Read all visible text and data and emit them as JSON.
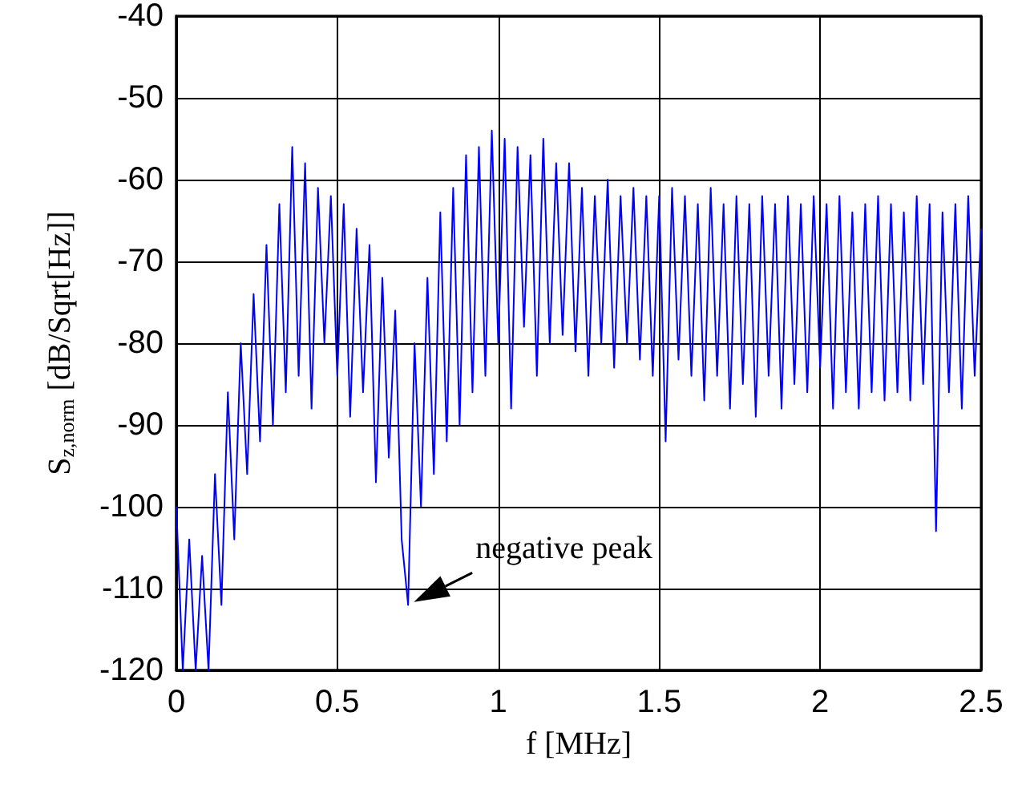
{
  "chart_data": {
    "type": "line",
    "xlabel": "f [MHz]",
    "ylabel": "S$_{z,norm}$ [dB/Sqrt[Hz]]",
    "x": [
      0,
      0.02,
      0.04,
      0.06,
      0.08,
      0.1,
      0.12,
      0.14,
      0.16,
      0.18,
      0.2,
      0.22,
      0.24,
      0.26,
      0.28,
      0.3,
      0.32,
      0.34,
      0.36,
      0.38,
      0.4,
      0.42,
      0.44,
      0.46,
      0.48,
      0.5,
      0.52,
      0.54,
      0.56,
      0.58,
      0.6,
      0.62,
      0.64,
      0.66,
      0.68,
      0.7,
      0.72,
      0.74,
      0.76,
      0.78,
      0.8,
      0.82,
      0.84,
      0.86,
      0.88,
      0.9,
      0.92,
      0.94,
      0.96,
      0.98,
      1,
      1.02,
      1.04,
      1.06,
      1.08,
      1.1,
      1.12,
      1.14,
      1.16,
      1.18,
      1.2,
      1.22,
      1.24,
      1.26,
      1.28,
      1.3,
      1.32,
      1.34,
      1.36,
      1.38,
      1.4,
      1.42,
      1.44,
      1.46,
      1.48,
      1.5,
      1.52,
      1.54,
      1.56,
      1.58,
      1.6,
      1.62,
      1.64,
      1.66,
      1.68,
      1.7,
      1.72,
      1.74,
      1.76,
      1.78,
      1.8,
      1.82,
      1.84,
      1.86,
      1.88,
      1.9,
      1.92,
      1.94,
      1.96,
      1.98,
      2,
      2.02,
      2.04,
      2.06,
      2.08,
      2.1,
      2.12,
      2.14,
      2.16,
      2.18,
      2.2,
      2.22,
      2.24,
      2.26,
      2.28,
      2.3,
      2.32,
      2.34,
      2.36,
      2.38,
      2.4,
      2.42,
      2.44,
      2.46,
      2.48,
      2.5
    ],
    "series": [
      {
        "color": "#0000ff",
        "values": [
          -100,
          -120,
          -104,
          -120,
          -106,
          -120,
          -96,
          -112,
          -86,
          -104,
          -80,
          -96,
          -74,
          -92,
          -68,
          -90,
          -63,
          -86,
          -56,
          -84,
          -58,
          -88,
          -61,
          -80,
          -62,
          -84,
          -63,
          -89,
          -66,
          -86,
          -68,
          -97,
          -72,
          -94,
          -76,
          -104,
          -112,
          -80,
          -100,
          -72,
          -96,
          -64,
          -92,
          -61,
          -90,
          -57,
          -86,
          -56,
          -84,
          -54,
          -80,
          -55,
          -88,
          -56,
          -78,
          -57,
          -84,
          -55,
          -80,
          -58,
          -79,
          -58,
          -81,
          -61,
          -84,
          -62,
          -80,
          -60,
          -83,
          -62,
          -80,
          -61,
          -82,
          -62,
          -84,
          -62,
          -92,
          -61,
          -82,
          -62,
          -84,
          -63,
          -87,
          -61,
          -84,
          -63,
          -88,
          -62,
          -85,
          -63,
          -89,
          -62,
          -84,
          -63,
          -88,
          -62,
          -85,
          -63,
          -86,
          -62,
          -83,
          -63,
          -88,
          -62,
          -86,
          -64,
          -88,
          -63,
          -86,
          -62,
          -87,
          -63,
          -86,
          -64,
          -87,
          -62,
          -85,
          -63,
          -103,
          -64,
          -86,
          -63,
          -88,
          -62,
          -84,
          -66
        ]
      }
    ],
    "xlim": [
      0,
      2.5
    ],
    "xticks": [
      0,
      0.5,
      1,
      1.5,
      2,
      2.5
    ],
    "ylim": [
      -120,
      -40
    ],
    "yticks": [
      -120,
      -110,
      -100,
      -90,
      -80,
      -70,
      -60,
      -50,
      -40
    ],
    "grid": true,
    "marker": "none",
    "line_style": "solid",
    "annotations": [
      {
        "text": "negative peak",
        "x": 0.72,
        "y": -112
      }
    ]
  }
}
